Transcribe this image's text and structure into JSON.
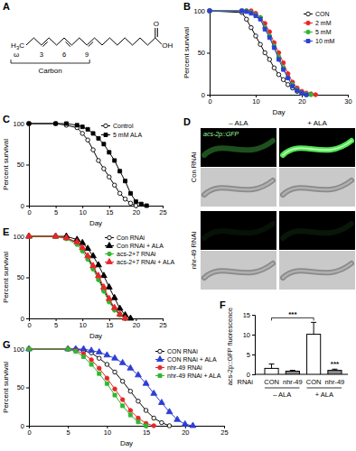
{
  "structure": {
    "title": "A",
    "left_group": "H3C",
    "omega": "ω",
    "positions": [
      3,
      6,
      9
    ],
    "bracket_label": "Carbon",
    "carbonyl": "O",
    "hydroxyl": "OH"
  },
  "images": {
    "title": "D",
    "columns": [
      "– ALA",
      "+ ALA"
    ],
    "rows": [
      "Con RNAi",
      "nhr-49 RNAi"
    ],
    "reporter": "acs-2p::GFP"
  },
  "chart_data": [
    {
      "type": "line",
      "title": "B",
      "x_label": "Day",
      "y_label": "Percent survival",
      "x": [
        0,
        7,
        8,
        9,
        10,
        11,
        12,
        13,
        14,
        15,
        16,
        17,
        18,
        19,
        20,
        21,
        22,
        23
      ],
      "xlim": [
        0,
        30
      ],
      "xticks": [
        0,
        10,
        20,
        30
      ],
      "ylim": [
        0,
        100
      ],
      "yticks": [
        0,
        50,
        100
      ],
      "legend": "top-right",
      "series": [
        {
          "name": "CON",
          "color": "#000000",
          "marker": "circle-open",
          "values": [
            100,
            98,
            90,
            80,
            70,
            60,
            50,
            42,
            32,
            24,
            18,
            12,
            8,
            4,
            2,
            0,
            null,
            null
          ]
        },
        {
          "name": "2 mM",
          "color": "#e8262a",
          "marker": "circle",
          "values": [
            100,
            100,
            100,
            100,
            97,
            92,
            85,
            75,
            62,
            50,
            38,
            25,
            15,
            8,
            4,
            2,
            1,
            0
          ]
        },
        {
          "name": "5 mM",
          "color": "#2eb82e",
          "marker": "circle",
          "values": [
            100,
            100,
            100,
            98,
            95,
            92,
            80,
            70,
            58,
            45,
            32,
            20,
            12,
            6,
            2,
            1,
            0,
            null
          ]
        },
        {
          "name": "10 mM",
          "color": "#2d3ed6",
          "marker": "square",
          "values": [
            100,
            100,
            99,
            97,
            94,
            90,
            78,
            68,
            56,
            42,
            30,
            20,
            10,
            5,
            2,
            0,
            null,
            null
          ]
        }
      ]
    },
    {
      "type": "line",
      "title": "C",
      "x_label": "Day",
      "y_label": "Percent survival",
      "x": [
        0,
        5,
        7,
        9,
        10,
        11,
        12,
        13,
        14,
        15,
        16,
        17,
        18,
        19,
        20,
        21,
        22
      ],
      "xlim": [
        0,
        25
      ],
      "xticks": [
        0,
        5,
        10,
        15,
        20,
        25
      ],
      "ylim": [
        0,
        100
      ],
      "yticks": [
        0,
        50,
        100
      ],
      "legend": "top-right",
      "series": [
        {
          "name": "Control",
          "color": "#000000",
          "marker": "circle-open",
          "values": [
            100,
            100,
            98,
            95,
            88,
            80,
            68,
            55,
            45,
            35,
            25,
            15,
            8,
            3,
            0,
            null,
            null
          ]
        },
        {
          "name": "5 mM ALA",
          "color": "#000000",
          "marker": "square",
          "values": [
            100,
            100,
            100,
            98,
            96,
            93,
            88,
            82,
            75,
            65,
            55,
            42,
            30,
            15,
            5,
            2,
            0
          ]
        }
      ]
    },
    {
      "type": "line",
      "title": "E",
      "x_label": "Day",
      "y_label": "Percent survival",
      "x": [
        0,
        5,
        7,
        9,
        10,
        11,
        12,
        13,
        14,
        15,
        16,
        17,
        18,
        19
      ],
      "xlim": [
        0,
        25
      ],
      "xticks": [
        0,
        5,
        10,
        15,
        20,
        25
      ],
      "ylim": [
        0,
        100
      ],
      "yticks": [
        0,
        50,
        100
      ],
      "legend": "top-right",
      "series": [
        {
          "name": "Con RNAi",
          "color": "#000000",
          "marker": "circle-open",
          "values": [
            100,
            100,
            98,
            92,
            85,
            75,
            62,
            50,
            35,
            22,
            12,
            5,
            0,
            null
          ]
        },
        {
          "name": "Con RNAi + ALA",
          "color": "#000000",
          "marker": "triangle",
          "values": [
            100,
            100,
            100,
            96,
            92,
            85,
            76,
            65,
            52,
            38,
            25,
            12,
            4,
            0
          ]
        },
        {
          "name": "acs-2+7 RNAi",
          "color": "#2eb82e",
          "marker": "circle",
          "values": [
            100,
            100,
            97,
            90,
            82,
            72,
            60,
            47,
            33,
            20,
            10,
            4,
            0,
            null
          ]
        },
        {
          "name": "acs-2+7 RNAi + ALA",
          "color": "#e8262a",
          "marker": "triangle",
          "values": [
            100,
            100,
            98,
            93,
            86,
            76,
            64,
            52,
            38,
            24,
            13,
            5,
            0,
            null
          ]
        }
      ]
    },
    {
      "type": "bar",
      "title": "F",
      "y_label": "acs-2p::GFP fluorescence",
      "x_label": "RNAi",
      "categories": [
        "CON",
        "nhr-49",
        "CON",
        "nhr-49"
      ],
      "groups": [
        "– ALA",
        "+ ALA"
      ],
      "values": [
        1.5,
        0.8,
        10.1,
        1.0
      ],
      "errors": [
        1.1,
        0.2,
        3.0,
        0.3
      ],
      "colors": [
        "#ffffff",
        "#8c8c8c",
        "#ffffff",
        "#8c8c8c"
      ],
      "ylim": [
        0,
        15
      ],
      "yticks": [
        0,
        5,
        10,
        15
      ],
      "annotations": [
        "***",
        "***"
      ]
    },
    {
      "type": "line",
      "title": "G",
      "x_label": "Day",
      "y_label": "Percent survival",
      "x": [
        0,
        5,
        6,
        7,
        8,
        9,
        10,
        11,
        12,
        13,
        14,
        15,
        16,
        17,
        18,
        19,
        20,
        21
      ],
      "xlim": [
        0,
        25
      ],
      "xticks": [
        0,
        5,
        10,
        15,
        20,
        25
      ],
      "ylim": [
        0,
        100
      ],
      "yticks": [
        0,
        50,
        100
      ],
      "legend": "top-right",
      "series": [
        {
          "name": "CON RNAi",
          "color": "#000000",
          "marker": "circle-open",
          "values": [
            100,
            100,
            100,
            98,
            95,
            88,
            80,
            70,
            58,
            45,
            32,
            20,
            10,
            4,
            0,
            null,
            null,
            null
          ]
        },
        {
          "name": "CON RNAi + ALA",
          "color": "#2d3ed6",
          "marker": "triangle",
          "values": [
            100,
            100,
            100,
            100,
            98,
            96,
            92,
            88,
            82,
            75,
            66,
            55,
            42,
            30,
            18,
            8,
            2,
            0
          ]
        },
        {
          "name": "nhr-49 RNAi",
          "color": "#e8262a",
          "marker": "circle",
          "values": [
            100,
            100,
            98,
            94,
            86,
            75,
            62,
            48,
            34,
            20,
            10,
            3,
            0,
            null,
            null,
            null,
            null,
            null
          ]
        },
        {
          "name": "nhr-49 RNAi + ALA",
          "color": "#2eb82e",
          "marker": "square",
          "values": [
            100,
            100,
            97,
            90,
            80,
            68,
            55,
            40,
            26,
            14,
            5,
            0,
            null,
            null,
            null,
            null,
            null,
            null
          ]
        }
      ]
    }
  ]
}
